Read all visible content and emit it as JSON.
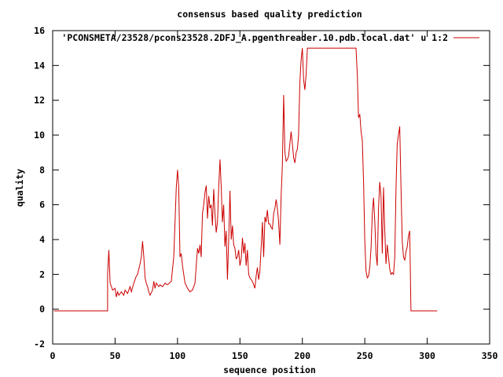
{
  "chart_data": {
    "type": "line",
    "title": "consensus based quality prediction",
    "xlabel": "sequence position",
    "ylabel": "quality",
    "xlim": [
      0,
      350
    ],
    "ylim": [
      -2,
      16
    ],
    "xticks": [
      0,
      50,
      100,
      150,
      200,
      250,
      300,
      350
    ],
    "yticks": [
      -2,
      0,
      2,
      4,
      6,
      8,
      10,
      12,
      14,
      16
    ],
    "legend_position": "top-right",
    "series": [
      {
        "name": "'PCONSMETA/23528/pcons23528.2DFJ_A.pgenthreader.10.pdb.local.dat' u 1:2",
        "color": "#cc0000",
        "points": [
          [
            1,
            -0.1
          ],
          [
            44,
            -0.1
          ],
          [
            44,
            2.0
          ],
          [
            45,
            3.4
          ],
          [
            46,
            1.5
          ],
          [
            48,
            1.1
          ],
          [
            50,
            1.2
          ],
          [
            51,
            0.7
          ],
          [
            52,
            1.0
          ],
          [
            53,
            0.8
          ],
          [
            55,
            1.0
          ],
          [
            57,
            0.8
          ],
          [
            58,
            1.1
          ],
          [
            60,
            0.9
          ],
          [
            62,
            1.3
          ],
          [
            63,
            1.0
          ],
          [
            65,
            1.5
          ],
          [
            67,
            1.9
          ],
          [
            68,
            2.0
          ],
          [
            70,
            2.6
          ],
          [
            71,
            3.0
          ],
          [
            72,
            3.9
          ],
          [
            73,
            3.0
          ],
          [
            74,
            1.8
          ],
          [
            75,
            1.5
          ],
          [
            76,
            1.3
          ],
          [
            77,
            1.0
          ],
          [
            78,
            0.8
          ],
          [
            80,
            1.1
          ],
          [
            81,
            1.6
          ],
          [
            82,
            1.2
          ],
          [
            83,
            1.5
          ],
          [
            84,
            1.4
          ],
          [
            85,
            1.3
          ],
          [
            86,
            1.4
          ],
          [
            88,
            1.3
          ],
          [
            90,
            1.5
          ],
          [
            92,
            1.4
          ],
          [
            95,
            1.6
          ],
          [
            97,
            3.0
          ],
          [
            98,
            5.0
          ],
          [
            99,
            7.0
          ],
          [
            100,
            8.0
          ],
          [
            101,
            7.0
          ],
          [
            102,
            3.0
          ],
          [
            103,
            3.2
          ],
          [
            104,
            2.5
          ],
          [
            105,
            2.0
          ],
          [
            106,
            1.5
          ],
          [
            108,
            1.2
          ],
          [
            110,
            1.0
          ],
          [
            112,
            1.1
          ],
          [
            113,
            1.3
          ],
          [
            114,
            1.5
          ],
          [
            115,
            2.5
          ],
          [
            116,
            3.5
          ],
          [
            117,
            3.2
          ],
          [
            118,
            3.7
          ],
          [
            119,
            3.0
          ],
          [
            120,
            5.5
          ],
          [
            121,
            6.0
          ],
          [
            122,
            6.7
          ],
          [
            123,
            7.1
          ],
          [
            124,
            5.2
          ],
          [
            125,
            6.5
          ],
          [
            126,
            5.8
          ],
          [
            127,
            6.0
          ],
          [
            128,
            4.8
          ],
          [
            129,
            6.9
          ],
          [
            130,
            5.5
          ],
          [
            131,
            4.4
          ],
          [
            132,
            5.0
          ],
          [
            133,
            7.0
          ],
          [
            134,
            8.6
          ],
          [
            135,
            7.0
          ],
          [
            136,
            5.0
          ],
          [
            137,
            6.0
          ],
          [
            138,
            3.6
          ],
          [
            139,
            4.5
          ],
          [
            140,
            1.7
          ],
          [
            141,
            4.0
          ],
          [
            142,
            6.8
          ],
          [
            143,
            4.0
          ],
          [
            144,
            4.8
          ],
          [
            145,
            3.7
          ],
          [
            146,
            3.5
          ],
          [
            147,
            2.9
          ],
          [
            148,
            3.0
          ],
          [
            149,
            3.4
          ],
          [
            150,
            2.5
          ],
          [
            151,
            2.9
          ],
          [
            152,
            4.1
          ],
          [
            153,
            3.2
          ],
          [
            154,
            3.8
          ],
          [
            155,
            2.5
          ],
          [
            156,
            3.4
          ],
          [
            157,
            2.0
          ],
          [
            158,
            1.8
          ],
          [
            160,
            1.6
          ],
          [
            161,
            1.4
          ],
          [
            162,
            1.2
          ],
          [
            163,
            1.9
          ],
          [
            164,
            2.4
          ],
          [
            165,
            1.7
          ],
          [
            166,
            2.2
          ],
          [
            167,
            3.6
          ],
          [
            168,
            5.0
          ],
          [
            169,
            3.0
          ],
          [
            170,
            5.3
          ],
          [
            171,
            5.0
          ],
          [
            172,
            5.7
          ],
          [
            173,
            4.9
          ],
          [
            174,
            4.9
          ],
          [
            175,
            4.7
          ],
          [
            176,
            4.6
          ],
          [
            177,
            5.5
          ],
          [
            178,
            5.8
          ],
          [
            179,
            6.3
          ],
          [
            180,
            5.8
          ],
          [
            181,
            5.0
          ],
          [
            182,
            3.7
          ],
          [
            183,
            6.5
          ],
          [
            184,
            8.3
          ],
          [
            185,
            12.3
          ],
          [
            186,
            9.0
          ],
          [
            187,
            8.5
          ],
          [
            188,
            8.6
          ],
          [
            189,
            8.8
          ],
          [
            190,
            9.5
          ],
          [
            191,
            10.2
          ],
          [
            192,
            9.5
          ],
          [
            193,
            8.7
          ],
          [
            194,
            8.4
          ],
          [
            195,
            9.0
          ],
          [
            196,
            9.2
          ],
          [
            197,
            10.0
          ],
          [
            198,
            13.0
          ],
          [
            199,
            14.3
          ],
          [
            200,
            15.0
          ],
          [
            201,
            13.2
          ],
          [
            202,
            12.6
          ],
          [
            203,
            13.5
          ],
          [
            204,
            15.0
          ],
          [
            243,
            15.0
          ],
          [
            244,
            13.5
          ],
          [
            245,
            11.0
          ],
          [
            246,
            11.2
          ],
          [
            247,
            10.2
          ],
          [
            248,
            9.7
          ],
          [
            249,
            7.3
          ],
          [
            250,
            4.0
          ],
          [
            251,
            2.2
          ],
          [
            252,
            1.8
          ],
          [
            253,
            1.9
          ],
          [
            254,
            2.4
          ],
          [
            255,
            3.5
          ],
          [
            256,
            5.5
          ],
          [
            257,
            6.4
          ],
          [
            258,
            5.0
          ],
          [
            259,
            3.2
          ],
          [
            260,
            2.5
          ],
          [
            261,
            5.8
          ],
          [
            262,
            7.3
          ],
          [
            263,
            6.5
          ],
          [
            264,
            3.2
          ],
          [
            265,
            7.0
          ],
          [
            266,
            4.5
          ],
          [
            267,
            2.6
          ],
          [
            268,
            3.7
          ],
          [
            269,
            3.0
          ],
          [
            270,
            2.3
          ],
          [
            271,
            2.0
          ],
          [
            272,
            2.1
          ],
          [
            273,
            2.0
          ],
          [
            274,
            3.0
          ],
          [
            275,
            7.0
          ],
          [
            276,
            9.5
          ],
          [
            277,
            10.0
          ],
          [
            278,
            10.5
          ],
          [
            279,
            7.0
          ],
          [
            280,
            3.9
          ],
          [
            281,
            3.0
          ],
          [
            282,
            2.8
          ],
          [
            283,
            3.3
          ],
          [
            284,
            3.6
          ],
          [
            285,
            4.2
          ],
          [
            286,
            4.5
          ],
          [
            287,
            -0.1
          ],
          [
            308,
            -0.1
          ]
        ]
      }
    ]
  }
}
